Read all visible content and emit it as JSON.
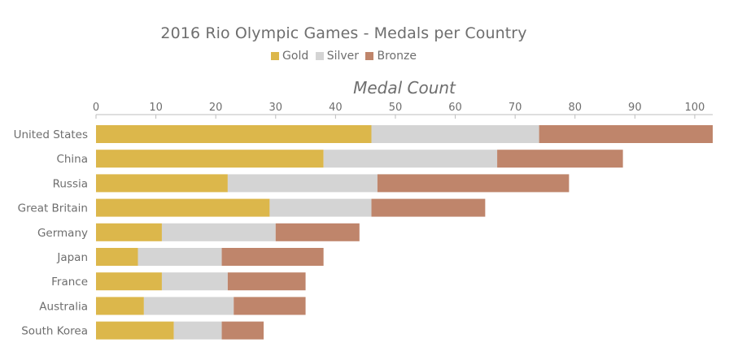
{
  "chart_data": {
    "type": "bar",
    "orientation": "horizontal",
    "stacked": true,
    "title": "2016 Rio Olympic Games - Medals per Country",
    "xlabel": "Medal Count",
    "ylabel": "",
    "axis_position": "top",
    "xlim": [
      0,
      103
    ],
    "xticks": [
      0,
      10,
      20,
      30,
      40,
      50,
      60,
      70,
      80,
      90,
      100
    ],
    "grid": false,
    "legend_position": "top-center",
    "categories": [
      "United States",
      "China",
      "Russia",
      "Great Britain",
      "Germany",
      "Japan",
      "France",
      "Australia",
      "South Korea"
    ],
    "series": [
      {
        "name": "Gold",
        "color": "#dcb74b",
        "values": [
          46,
          38,
          22,
          29,
          11,
          7,
          11,
          8,
          13
        ]
      },
      {
        "name": "Silver",
        "color": "#d4d4d4",
        "values": [
          28,
          29,
          25,
          17,
          19,
          14,
          11,
          15,
          8
        ]
      },
      {
        "name": "Bronze",
        "color": "#bf856b",
        "values": [
          29,
          21,
          32,
          19,
          14,
          17,
          13,
          12,
          7
        ]
      }
    ]
  }
}
